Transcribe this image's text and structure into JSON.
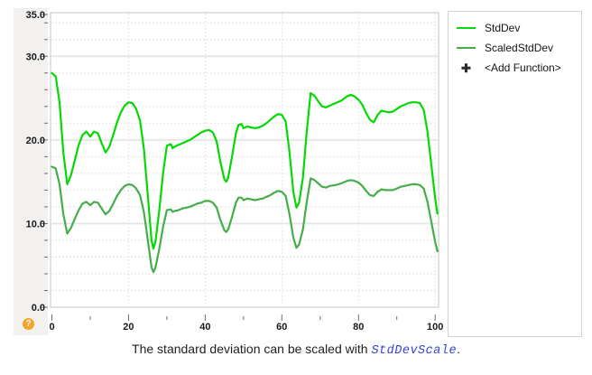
{
  "chart_data": {
    "type": "line",
    "title": "",
    "xlabel": "",
    "ylabel": "",
    "xlim": [
      0,
      101
    ],
    "ylim": [
      0,
      35.2
    ],
    "grid": true,
    "legend_position": "right",
    "x_ticks_major": [
      0,
      20,
      40,
      60,
      80,
      100
    ],
    "x_tick_labels": [
      "0",
      "20",
      "40",
      "60",
      "80",
      "100"
    ],
    "x_ticks_minor": [
      10,
      30,
      50,
      70,
      90
    ],
    "x_gridlines_major": [
      20,
      40,
      60,
      80,
      100
    ],
    "y_tick_labels": [
      {
        "value": 35,
        "text": "35.0"
      },
      {
        "value": 30,
        "text": "30.0"
      },
      {
        "value": 20,
        "text": "20.0"
      },
      {
        "value": 10,
        "text": "10.0"
      },
      {
        "value": 0,
        "text": "0.0"
      }
    ],
    "y_ticks_major": [
      0,
      10,
      20,
      30,
      35
    ],
    "y_gridlines_major": [
      10,
      20,
      30
    ],
    "y_ticks_minor": [
      2,
      4,
      6,
      8,
      12,
      14,
      16,
      18,
      22,
      24,
      26,
      28,
      32,
      34
    ],
    "y_gridlines_minor": [
      2,
      4,
      6,
      8,
      12,
      14,
      16,
      18,
      22,
      24,
      26,
      28,
      32,
      34
    ],
    "series": [
      {
        "name": "StdDev",
        "color": "#05d905",
        "x": [
          0,
          1,
          2,
          3,
          4,
          5,
          6,
          7,
          8,
          9,
          10,
          11,
          12,
          13,
          14,
          15,
          16,
          17,
          18,
          19,
          20,
          21,
          22,
          23,
          24,
          25,
          26,
          26.5,
          27,
          28,
          29,
          30,
          31,
          31.5,
          32,
          33,
          34,
          35,
          36,
          37,
          38,
          39,
          40,
          41,
          42,
          43,
          44,
          45,
          45.5,
          46,
          47,
          48,
          48.7,
          49.5,
          50,
          51,
          52,
          53,
          54,
          55,
          56,
          57,
          58,
          59,
          60,
          61,
          62,
          63,
          63.8,
          64.5,
          65.5,
          66.5,
          67.5,
          68.5,
          69.5,
          70.5,
          71.5,
          72.5,
          74,
          75.5,
          77,
          78,
          79,
          80,
          81,
          82,
          83,
          84,
          85,
          86,
          87,
          88,
          89,
          90,
          91,
          92,
          93,
          94,
          95,
          96,
          97,
          98,
          99,
          100,
          100.6
        ],
        "y": [
          28,
          27.6,
          24.5,
          18.5,
          14.7,
          15.8,
          17.6,
          19.4,
          20.6,
          21,
          20.4,
          21,
          20.8,
          19.6,
          18.5,
          19.2,
          20.6,
          22.1,
          23.3,
          24.1,
          24.5,
          24.4,
          23.7,
          22.3,
          19,
          13.5,
          8,
          7,
          7.8,
          11.5,
          16,
          19.3,
          19.5,
          19,
          19.2,
          19.4,
          19.6,
          19.8,
          20,
          20.3,
          20.6,
          20.9,
          21.1,
          21.2,
          20.9,
          19.8,
          17.3,
          15.3,
          15,
          15.5,
          18,
          20.8,
          21.8,
          21.9,
          21.4,
          21.6,
          21.5,
          21.4,
          21.5,
          21.7,
          22,
          22.4,
          22.8,
          23.1,
          23,
          22.2,
          18.5,
          13.8,
          11.9,
          12.5,
          15.5,
          21,
          25.6,
          25.3,
          24.6,
          24,
          23.9,
          24.1,
          24.4,
          24.7,
          25.2,
          25.4,
          25.2,
          24.8,
          24.2,
          23.2,
          22.4,
          22.1,
          23,
          23.5,
          23.4,
          23.3,
          23.4,
          23.7,
          24,
          24.2,
          24.4,
          24.5,
          24.5,
          24.4,
          23.6,
          21,
          17,
          13,
          11.2
        ]
      },
      {
        "name": "ScaledStdDev",
        "color": "#45ad49",
        "scale_factor_of_stddev": 0.6,
        "x": [
          0,
          1,
          2,
          3,
          4,
          5,
          6,
          7,
          8,
          9,
          10,
          11,
          12,
          13,
          14,
          15,
          16,
          17,
          18,
          19,
          20,
          21,
          22,
          23,
          24,
          25,
          26,
          26.5,
          27,
          28,
          29,
          30,
          31,
          31.5,
          32,
          33,
          34,
          35,
          36,
          37,
          38,
          39,
          40,
          41,
          42,
          43,
          44,
          45,
          45.5,
          46,
          47,
          48,
          48.7,
          49.5,
          50,
          51,
          52,
          53,
          54,
          55,
          56,
          57,
          58,
          59,
          60,
          61,
          62,
          63,
          63.8,
          64.5,
          65.5,
          66.5,
          67.5,
          68.5,
          69.5,
          70.5,
          71.5,
          72.5,
          74,
          75.5,
          77,
          78,
          79,
          80,
          81,
          82,
          83,
          84,
          85,
          86,
          87,
          88,
          89,
          90,
          91,
          92,
          93,
          94,
          95,
          96,
          97,
          98,
          99,
          100,
          100.6
        ],
        "y": [
          16.8,
          16.6,
          14.7,
          11.1,
          8.8,
          9.5,
          10.6,
          11.6,
          12.4,
          12.6,
          12.2,
          12.6,
          12.5,
          11.8,
          11.1,
          11.5,
          12.4,
          13.3,
          14,
          14.5,
          14.7,
          14.6,
          14.2,
          13.4,
          11.4,
          8.1,
          4.8,
          4.2,
          4.7,
          6.9,
          9.6,
          11.6,
          11.7,
          11.4,
          11.5,
          11.6,
          11.8,
          11.9,
          12,
          12.2,
          12.4,
          12.5,
          12.7,
          12.7,
          12.5,
          11.9,
          10.4,
          9.2,
          9,
          9.3,
          10.8,
          12.5,
          13.1,
          13.1,
          12.8,
          13,
          12.9,
          12.8,
          12.9,
          13,
          13.2,
          13.4,
          13.7,
          13.9,
          13.8,
          13.3,
          11.1,
          8.3,
          7.1,
          7.5,
          9.3,
          12.6,
          15.4,
          15.2,
          14.8,
          14.4,
          14.3,
          14.5,
          14.6,
          14.8,
          15.1,
          15.2,
          15.1,
          14.9,
          14.5,
          13.9,
          13.4,
          13.3,
          13.8,
          14.1,
          14,
          14,
          14,
          14.2,
          14.4,
          14.5,
          14.6,
          14.7,
          14.7,
          14.6,
          14.2,
          12.6,
          10.2,
          7.8,
          6.7
        ]
      }
    ]
  },
  "legend": {
    "items": [
      {
        "label": "StdDev",
        "color": "#05d905",
        "swatch": "line"
      },
      {
        "label": "ScaledStdDev",
        "color": "#45ad49",
        "swatch": "line"
      },
      {
        "label": "<Add Function>",
        "icon": "✚",
        "swatch": "plus"
      }
    ]
  },
  "caption": {
    "text": "The standard deviation can be scaled with ",
    "code": "StdDevScale",
    "suffix": ".",
    "code_color": "#3744d0"
  },
  "help": {
    "glyph": "?"
  },
  "colors": {
    "grid_major": "#e7e7e7",
    "grid_minor": "#dadada",
    "plot_border": "#c6c6c6",
    "tick": "#6e6e6e",
    "axis_text": "#1a1a1a",
    "strip_bg": "#f2f1f0",
    "help_bg": "#f4a428"
  }
}
